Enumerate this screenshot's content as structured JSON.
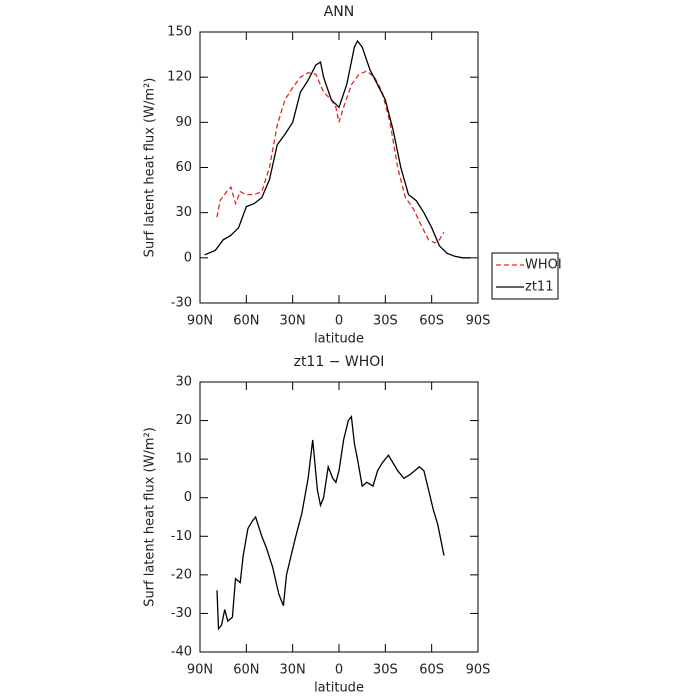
{
  "chart_data": [
    {
      "type": "line",
      "title": "ANN",
      "x_label": "latitude",
      "y_label": "Surf latent heat flux (W/m²)",
      "xlim": [
        90,
        -90
      ],
      "xticks": [
        {
          "value": 90,
          "label": "90N"
        },
        {
          "value": 60,
          "label": "60N"
        },
        {
          "value": 30,
          "label": "30N"
        },
        0,
        {
          "value": -30,
          "label": "30S"
        },
        {
          "value": -60,
          "label": "60S"
        },
        {
          "value": -90,
          "label": "90S"
        }
      ],
      "ylim": [
        -30,
        150
      ],
      "yticks": [
        -30,
        0,
        30,
        60,
        90,
        120,
        150
      ],
      "legend": "right",
      "series": [
        {
          "name": "WHOI",
          "color": "#e8261e",
          "dashed": true,
          "x": [
            79,
            77,
            72,
            70,
            67,
            64,
            60,
            55,
            50,
            45,
            40,
            35,
            30,
            25,
            20,
            15,
            10,
            5,
            2,
            0,
            -3,
            -8,
            -13,
            -18,
            -23,
            -28,
            -33,
            -38,
            -43,
            -48,
            -53,
            -58,
            -62,
            -65,
            -68
          ],
          "values": [
            27,
            38,
            45,
            47,
            36,
            44,
            42,
            42,
            44,
            60,
            88,
            105,
            113,
            120,
            123,
            122,
            110,
            105,
            100,
            90,
            100,
            115,
            122,
            124,
            120,
            110,
            90,
            60,
            40,
            33,
            22,
            12,
            10,
            12,
            17
          ]
        },
        {
          "name": "zt11",
          "color": "#000000",
          "dashed": false,
          "x": [
            87,
            80,
            75,
            70,
            65,
            60,
            55,
            50,
            45,
            40,
            35,
            30,
            25,
            20,
            15,
            12,
            10,
            5,
            0,
            -5,
            -10,
            -12,
            -15,
            -20,
            -25,
            -30,
            -35,
            -40,
            -45,
            -50,
            -55,
            -60,
            -65,
            -70,
            -75,
            -80,
            -85
          ],
          "values": [
            2,
            5,
            12,
            15,
            20,
            34,
            36,
            40,
            52,
            75,
            82,
            90,
            110,
            118,
            128,
            130,
            120,
            105,
            100,
            115,
            140,
            144,
            140,
            125,
            115,
            105,
            85,
            60,
            42,
            38,
            30,
            20,
            8,
            3,
            1,
            0,
            0
          ]
        }
      ]
    },
    {
      "type": "line",
      "title": "zt11 − WHOI",
      "x_label": "latitude",
      "y_label": "Surf latent heat flux (W/m²)",
      "xlim": [
        90,
        -90
      ],
      "xticks": [
        {
          "value": 90,
          "label": "90N"
        },
        {
          "value": 60,
          "label": "60N"
        },
        {
          "value": 30,
          "label": "30N"
        },
        0,
        {
          "value": -30,
          "label": "30S"
        },
        {
          "value": -60,
          "label": "60S"
        },
        {
          "value": -90,
          "label": "90S"
        }
      ],
      "ylim": [
        -40,
        30
      ],
      "yticks": [
        -40,
        -30,
        -20,
        -10,
        0,
        10,
        20,
        30
      ],
      "series": [
        {
          "color": "#000000",
          "dashed": false,
          "x": [
            79,
            78,
            76,
            74,
            72,
            69,
            67,
            64,
            62,
            59,
            56,
            54,
            50,
            47,
            43,
            39,
            36,
            34,
            31,
            28,
            24,
            20,
            17,
            14,
            12,
            10,
            7,
            4,
            2,
            0,
            -3,
            -6,
            -8,
            -10,
            -12,
            -15,
            -18,
            -22,
            -25,
            -28,
            -32,
            -35,
            -38,
            -42,
            -46,
            -49,
            -52,
            -55,
            -58,
            -61,
            -64,
            -68
          ],
          "values": [
            -24,
            -34,
            -33,
            -29,
            -32,
            -31,
            -21,
            -22,
            -15,
            -8,
            -6,
            -5,
            -10,
            -13,
            -18,
            -25,
            -28,
            -20,
            -15,
            -10,
            -4,
            5,
            15,
            2,
            -2,
            0,
            8,
            5,
            4,
            7,
            15,
            20,
            21,
            14,
            10,
            3,
            4,
            3,
            7,
            9,
            11,
            9,
            7,
            5,
            6,
            7,
            8,
            7,
            2,
            -3,
            -7,
            -15
          ]
        }
      ]
    }
  ]
}
